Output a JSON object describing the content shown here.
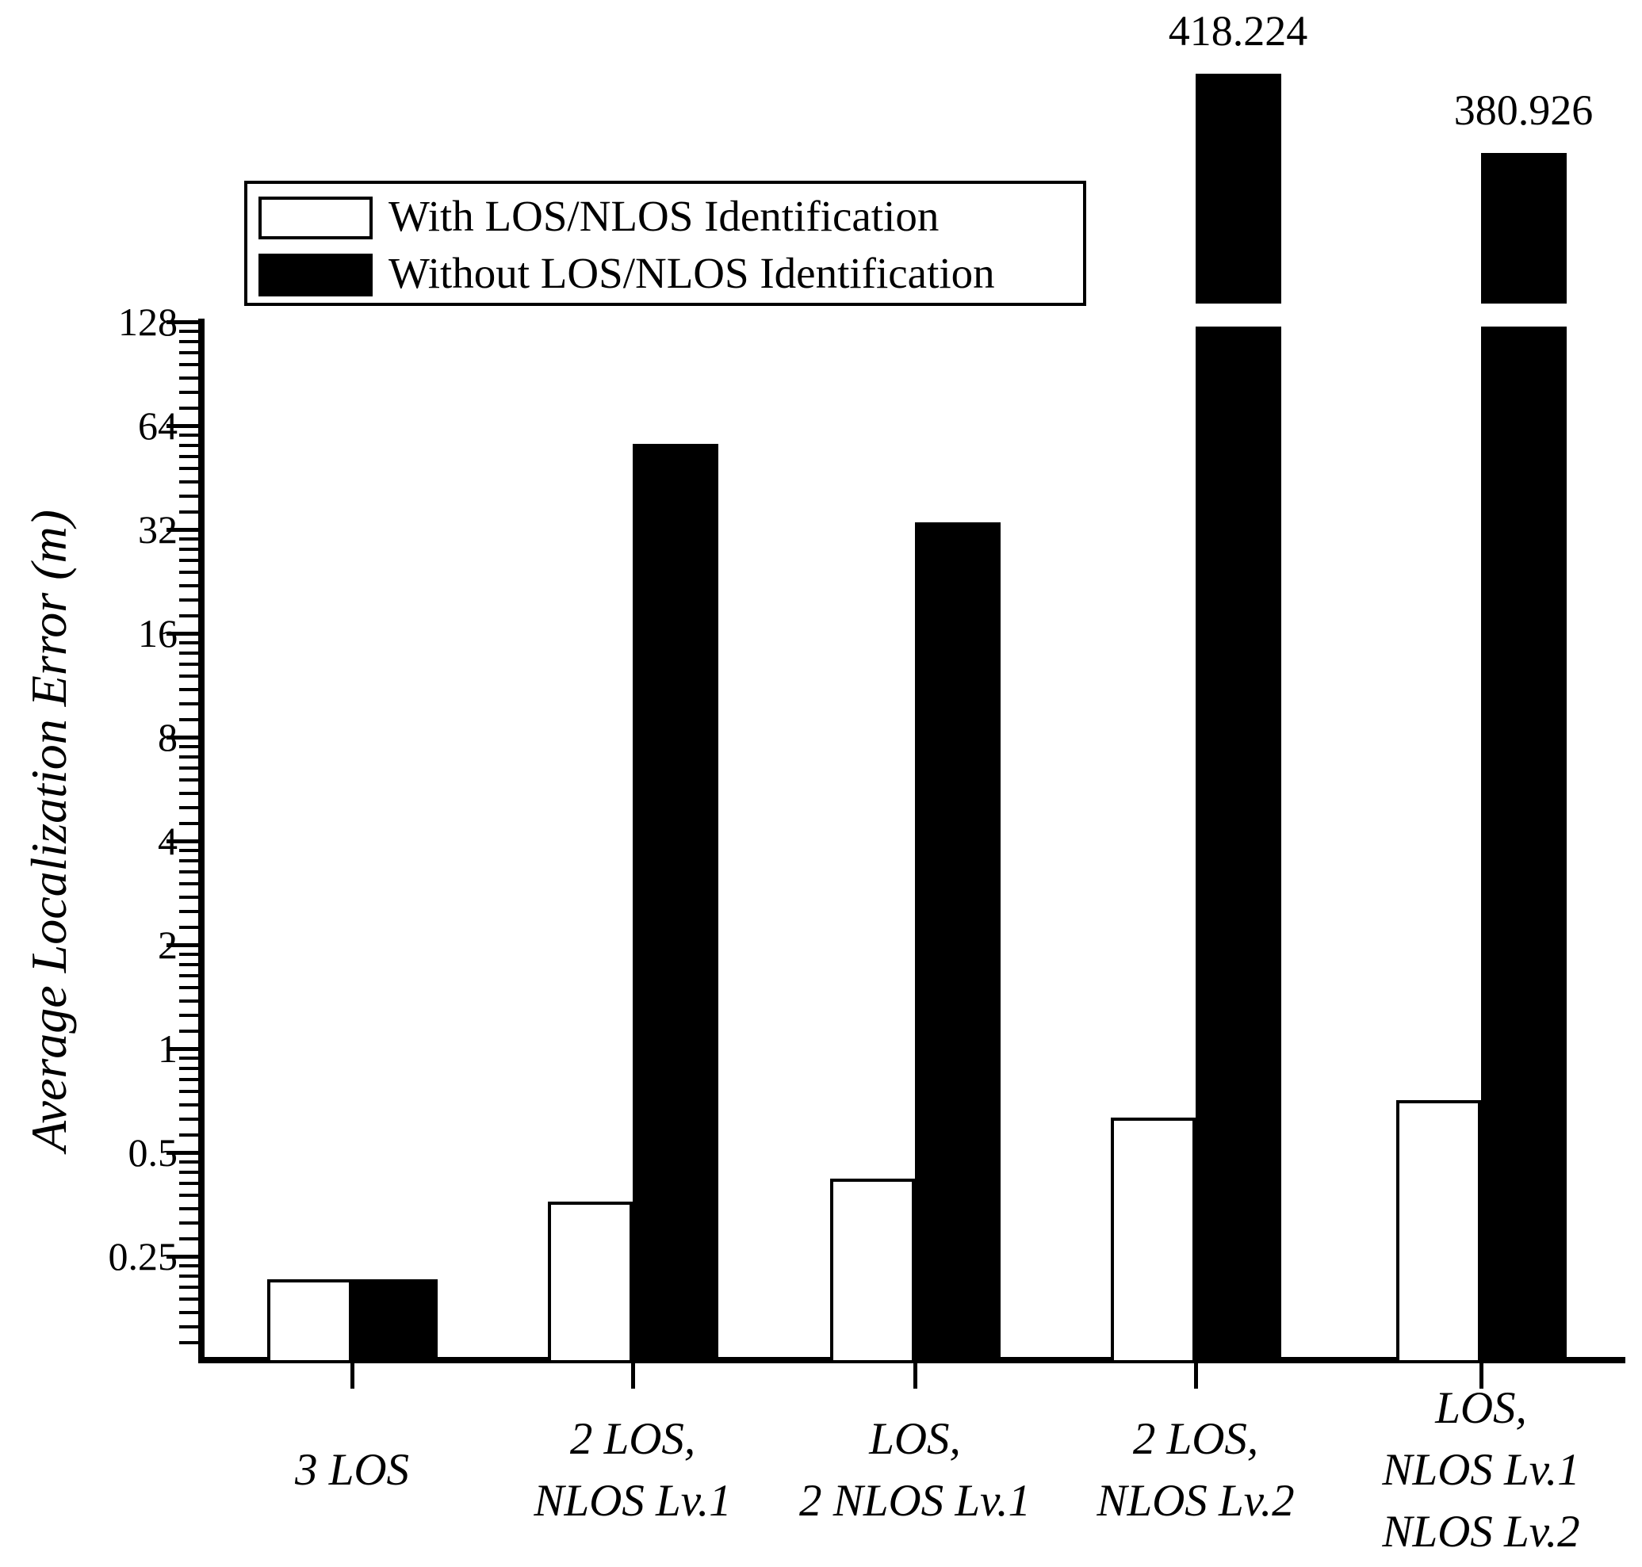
{
  "figure": {
    "background": "#ffffff",
    "ink_color": "#000000"
  },
  "chart_data": {
    "type": "bar",
    "title": "",
    "xlabel": "",
    "ylabel": "Average Localization Error (m)",
    "y_scale": "log2",
    "ylim": [
      0.125,
      128
    ],
    "y_tick_values": [
      128,
      64,
      32,
      16,
      8,
      4,
      2,
      1,
      0.5,
      0.25
    ],
    "y_tick_labels": [
      "128",
      "64",
      "32",
      "16",
      "8",
      "4",
      "2",
      "1",
      "0.5",
      "0.25"
    ],
    "grid": false,
    "legend_position": "upper-left",
    "axis_break": {
      "enabled": true,
      "above_value": 128
    },
    "categories": [
      {
        "lines": [
          "3 LOS"
        ]
      },
      {
        "lines": [
          "2 LOS,",
          "NLOS Lv.1"
        ]
      },
      {
        "lines": [
          "LOS,",
          "2 NLOS Lv.1"
        ]
      },
      {
        "lines": [
          "2 LOS,",
          "NLOS Lv.2"
        ]
      },
      {
        "lines": [
          "LOS,",
          "NLOS Lv.1",
          "NLOS Lv.2"
        ]
      }
    ],
    "series": [
      {
        "name": "With LOS/NLOS Identification",
        "fill": "#ffffff",
        "values": [
          0.215,
          0.36,
          0.42,
          0.63,
          0.71
        ]
      },
      {
        "name": "Without LOS/NLOS Identification",
        "fill": "#000000",
        "values": [
          0.215,
          56.6,
          33.6,
          418.224,
          380.926
        ]
      }
    ],
    "value_labels": [
      {
        "series": 1,
        "category": 3,
        "text": "418.224"
      },
      {
        "series": 1,
        "category": 4,
        "text": "380.926"
      }
    ]
  }
}
